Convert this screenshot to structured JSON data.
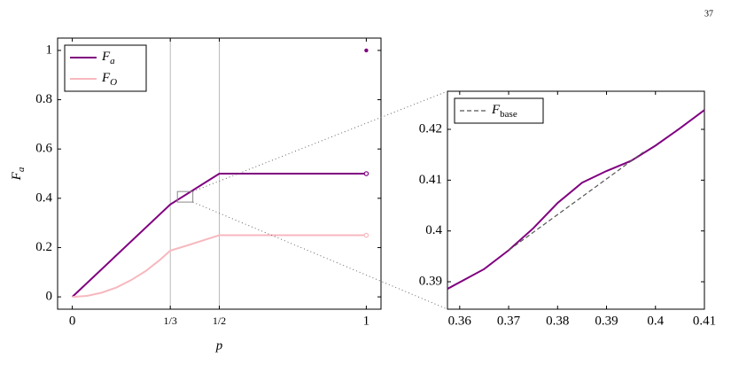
{
  "page_number": "37",
  "chart_data": [
    {
      "type": "line",
      "xlabel": "p",
      "ylabel": "Fa",
      "xlim": [
        -0.05,
        1.05
      ],
      "ylim": [
        -0.05,
        1.05
      ],
      "xticks": [
        0,
        {
          "value": 0.3333,
          "label": "1/3"
        },
        {
          "value": 0.5,
          "label": "1/2"
        },
        1
      ],
      "yticks": [
        0,
        0.2,
        0.4,
        0.6,
        0.8,
        1
      ],
      "vlines": [
        0.3333,
        0.5
      ],
      "legend": "upper left",
      "series": [
        {
          "name": "Fa",
          "color": "#800080",
          "x": [
            0,
            0.3333,
            0.5,
            1
          ],
          "values": [
            0,
            0.375,
            0.5,
            0.5
          ],
          "end_marker": "open"
        },
        {
          "name": "FO",
          "color": "#f7b8bf",
          "x": [
            0,
            0.05,
            0.1,
            0.15,
            0.2,
            0.25,
            0.3,
            0.3333,
            0.4,
            0.45,
            0.5,
            1
          ],
          "values": [
            0,
            0.004,
            0.017,
            0.038,
            0.068,
            0.105,
            0.152,
            0.1875,
            0.212,
            0.231,
            0.25,
            0.25
          ],
          "end_marker": "open"
        }
      ],
      "points": [
        {
          "x": 1,
          "y": 1,
          "color": "#800080"
        }
      ]
    },
    {
      "type": "line",
      "xlim": [
        0.3575,
        0.41
      ],
      "ylim": [
        0.3846,
        0.4275
      ],
      "xticks": [
        0.36,
        0.37,
        0.38,
        0.39,
        0.4,
        0.41
      ],
      "yticks": [
        0.39,
        0.4,
        0.41,
        0.42
      ],
      "legend": "upper left",
      "series": [
        {
          "color": "#800080",
          "x": [
            0.3575,
            0.365,
            0.37,
            0.375,
            0.38,
            0.385,
            0.39,
            0.395,
            0.4,
            0.405,
            0.41
          ],
          "values": [
            0.3886,
            0.3925,
            0.3962,
            0.4005,
            0.4055,
            0.4095,
            0.4118,
            0.4138,
            0.4168,
            0.4202,
            0.4238
          ]
        },
        {
          "name": "Fbase",
          "color": "#555555",
          "dashed": true,
          "x": [
            0.37,
            0.3975
          ],
          "values": [
            0.3962,
            0.4155
          ]
        }
      ]
    }
  ]
}
